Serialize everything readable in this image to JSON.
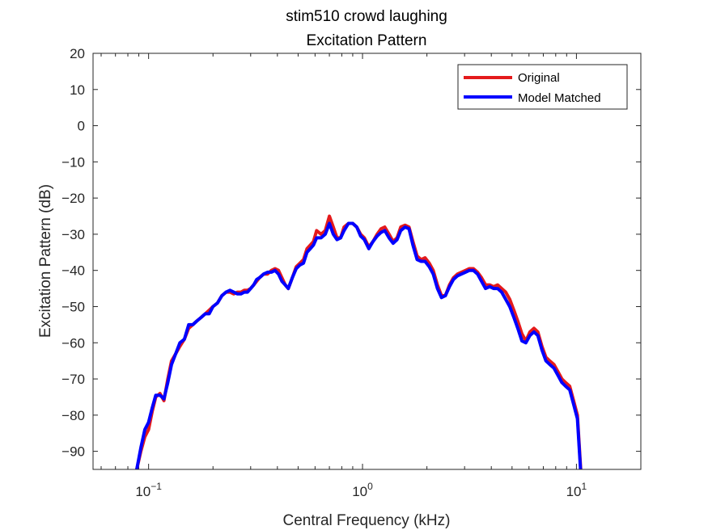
{
  "chart_data": {
    "type": "line",
    "title": "stim510 crowd laughing",
    "subtitle": "Excitation Pattern",
    "xlabel": "Central Frequency (kHz)",
    "ylabel": "Excitation Pattern (dB)",
    "xscale": "log",
    "xlim": [
      0.055,
      20
    ],
    "ylim": [
      -95,
      20
    ],
    "yticks": [
      20,
      10,
      0,
      -10,
      -20,
      -30,
      -40,
      -50,
      -60,
      -70,
      -80,
      -90
    ],
    "xticks": [
      {
        "value": 0.1,
        "base": "10",
        "exp": "−1"
      },
      {
        "value": 1,
        "base": "10",
        "exp": "0"
      },
      {
        "value": 10,
        "base": "10",
        "exp": "1"
      }
    ],
    "grid": false,
    "legend_position": "top-right",
    "series": [
      {
        "name": "Original",
        "color": "#e41a1c",
        "x": [
          0.088,
          0.092,
          0.096,
          0.1,
          0.104,
          0.108,
          0.113,
          0.118,
          0.123,
          0.128,
          0.134,
          0.14,
          0.147,
          0.154,
          0.161,
          0.168,
          0.176,
          0.184,
          0.192,
          0.2,
          0.21,
          0.22,
          0.23,
          0.24,
          0.25,
          0.26,
          0.27,
          0.28,
          0.29,
          0.3,
          0.31,
          0.32,
          0.33,
          0.345,
          0.36,
          0.375,
          0.39,
          0.405,
          0.42,
          0.435,
          0.45,
          0.47,
          0.49,
          0.51,
          0.53,
          0.55,
          0.57,
          0.59,
          0.61,
          0.64,
          0.67,
          0.7,
          0.73,
          0.76,
          0.79,
          0.82,
          0.86,
          0.9,
          0.94,
          0.98,
          1.02,
          1.07,
          1.12,
          1.17,
          1.22,
          1.27,
          1.33,
          1.39,
          1.45,
          1.51,
          1.58,
          1.65,
          1.72,
          1.8,
          1.88,
          1.96,
          2.05,
          2.14,
          2.24,
          2.34,
          2.44,
          2.55,
          2.66,
          2.78,
          2.9,
          3.03,
          3.16,
          3.3,
          3.45,
          3.6,
          3.76,
          3.93,
          4.1,
          4.28,
          4.47,
          4.67,
          4.88,
          5.1,
          5.32,
          5.56,
          5.8,
          6.06,
          6.33,
          6.6,
          6.9,
          7.2,
          7.5,
          7.85,
          8.2,
          8.55,
          8.9,
          9.3,
          9.7,
          10.1,
          10.5
        ],
        "y": [
          -95,
          -90,
          -86,
          -84,
          -79,
          -75,
          -74,
          -76,
          -70,
          -65,
          -63,
          -61,
          -59,
          -56,
          -55,
          -54,
          -53,
          -52,
          -51,
          -50,
          -49,
          -47,
          -46,
          -46,
          -46.5,
          -46,
          -46,
          -45.5,
          -45.5,
          -45,
          -44,
          -43,
          -42,
          -41,
          -41,
          -40,
          -39.5,
          -40,
          -42,
          -44,
          -45,
          -42,
          -39,
          -38,
          -37,
          -34,
          -33,
          -32,
          -29,
          -30,
          -29,
          -25,
          -28,
          -31,
          -31,
          -28,
          -27,
          -27,
          -28,
          -30,
          -31,
          -33.5,
          -32,
          -30,
          -28.5,
          -28,
          -30,
          -32,
          -31,
          -28,
          -27.5,
          -28,
          -32,
          -36,
          -37,
          -36.5,
          -38,
          -40,
          -44,
          -47,
          -47,
          -44,
          -42,
          -41,
          -40.5,
          -40,
          -39.5,
          -39.5,
          -40.5,
          -42,
          -44,
          -44,
          -44.5,
          -44,
          -45,
          -46,
          -48,
          -51,
          -54,
          -57.5,
          -59.5,
          -57,
          -56,
          -57,
          -61,
          -64,
          -65,
          -66,
          -68,
          -70,
          -71,
          -72,
          -76,
          -80,
          -96
        ],
        "line_width": 4
      },
      {
        "name": "Model Matched",
        "color": "#0000ff",
        "x": [
          0.088,
          0.092,
          0.096,
          0.1,
          0.104,
          0.108,
          0.113,
          0.118,
          0.123,
          0.128,
          0.134,
          0.14,
          0.147,
          0.154,
          0.161,
          0.168,
          0.176,
          0.184,
          0.192,
          0.2,
          0.21,
          0.22,
          0.23,
          0.24,
          0.25,
          0.26,
          0.27,
          0.28,
          0.29,
          0.3,
          0.31,
          0.32,
          0.33,
          0.345,
          0.36,
          0.375,
          0.39,
          0.405,
          0.42,
          0.435,
          0.45,
          0.47,
          0.49,
          0.51,
          0.53,
          0.55,
          0.57,
          0.59,
          0.61,
          0.64,
          0.67,
          0.7,
          0.73,
          0.76,
          0.79,
          0.82,
          0.86,
          0.9,
          0.94,
          0.98,
          1.02,
          1.07,
          1.12,
          1.17,
          1.22,
          1.27,
          1.33,
          1.39,
          1.45,
          1.51,
          1.58,
          1.65,
          1.72,
          1.8,
          1.88,
          1.96,
          2.05,
          2.14,
          2.24,
          2.34,
          2.44,
          2.55,
          2.66,
          2.78,
          2.9,
          3.03,
          3.16,
          3.3,
          3.45,
          3.6,
          3.76,
          3.93,
          4.1,
          4.28,
          4.47,
          4.67,
          4.88,
          5.1,
          5.32,
          5.56,
          5.8,
          6.06,
          6.33,
          6.6,
          6.9,
          7.2,
          7.5,
          7.85,
          8.2,
          8.55,
          8.9,
          9.3,
          9.7,
          10.1,
          10.5
        ],
        "y": [
          -95,
          -89,
          -84,
          -82,
          -78,
          -74.5,
          -74.5,
          -75.5,
          -71,
          -66,
          -63,
          -60,
          -59,
          -55,
          -55,
          -54,
          -53,
          -52,
          -52,
          -50,
          -49,
          -47,
          -46,
          -45.5,
          -46,
          -46.5,
          -46.5,
          -46,
          -46,
          -45,
          -44,
          -42.5,
          -42,
          -41,
          -40.5,
          -40.5,
          -40,
          -41,
          -43,
          -44,
          -45,
          -42,
          -39.5,
          -38.5,
          -38,
          -35,
          -34,
          -33,
          -31,
          -31,
          -30,
          -27,
          -30,
          -31.5,
          -31,
          -29,
          -27,
          -27,
          -28,
          -30.5,
          -31.5,
          -34,
          -32,
          -30.5,
          -29.5,
          -29,
          -31,
          -32.5,
          -31.5,
          -29,
          -28,
          -28.5,
          -33,
          -37,
          -37.5,
          -37.5,
          -39,
          -41,
          -45,
          -47.5,
          -47,
          -44.5,
          -42.5,
          -41.5,
          -41,
          -40.5,
          -40,
          -40,
          -41,
          -43,
          -45,
          -44.5,
          -45,
          -45,
          -46,
          -48,
          -50,
          -53,
          -56,
          -59.5,
          -60,
          -58,
          -57,
          -58,
          -62,
          -65,
          -66,
          -67,
          -69,
          -71,
          -72,
          -73,
          -77,
          -81,
          -97
        ],
        "line_width": 4
      }
    ]
  }
}
